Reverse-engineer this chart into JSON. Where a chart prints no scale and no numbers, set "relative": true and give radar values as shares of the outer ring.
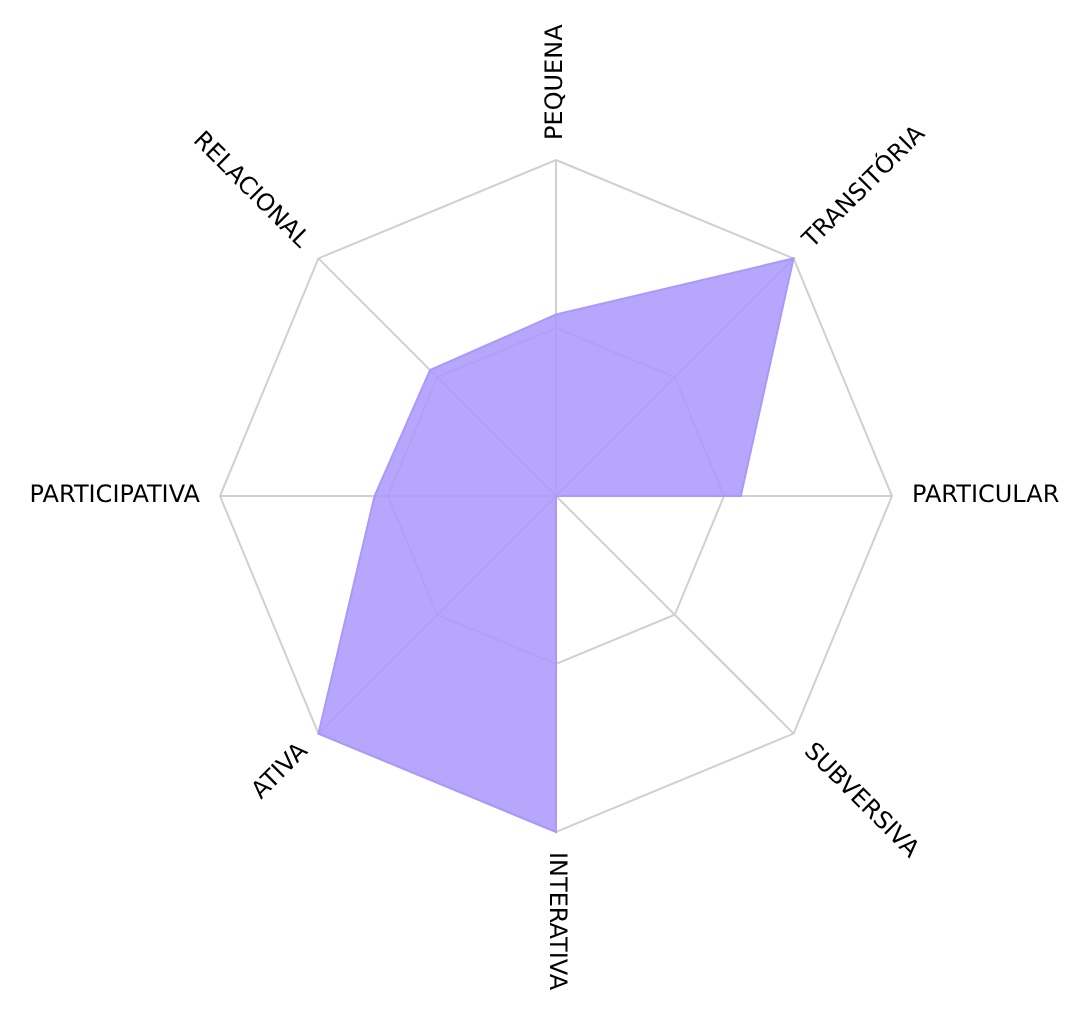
{
  "chart_data": {
    "type": "radar",
    "relative": true,
    "grid": true,
    "categories": [
      "PEQUENA",
      "TRANSITÓRIA",
      "PARTICULAR",
      "SUBVERSIVA",
      "INTERATIVA",
      "ATIVA",
      "PARTICIPATIVA",
      "RELACIONAL"
    ],
    "series": [
      {
        "color": "#ab98fb",
        "values": [
          0.54,
          1,
          0.55,
          0,
          1,
          1,
          0.54,
          0.53
        ]
      }
    ]
  }
}
